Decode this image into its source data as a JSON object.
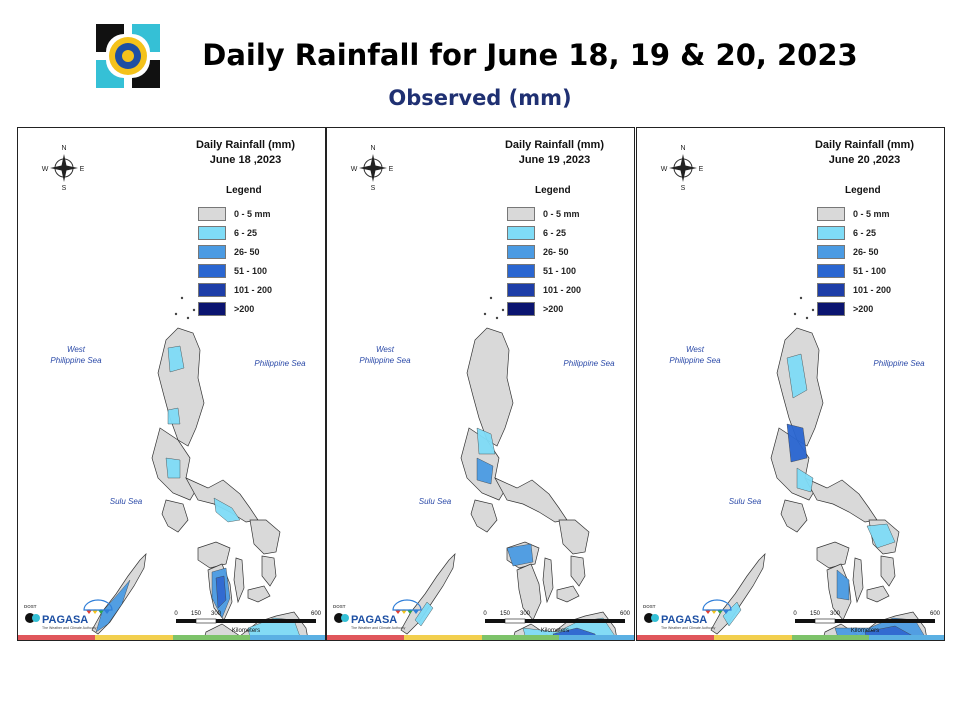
{
  "header": {
    "title": "Daily Rainfall for June 18, 19 & 20, 2023",
    "subtitle": "Observed (mm)"
  },
  "panels": [
    {
      "title_line1": "Daily Rainfall (mm)",
      "title_line2": "June 18 ,2023",
      "dominant": "south-west"
    },
    {
      "title_line1": "Daily Rainfall (mm)",
      "title_line2": "June 19 ,2023",
      "dominant": "mindanao"
    },
    {
      "title_line1": "Daily Rainfall (mm)",
      "title_line2": "June 20 ,2023",
      "dominant": "mindanao-heavy"
    }
  ],
  "legend": {
    "title": "Legend",
    "items": [
      {
        "label": "0 - 5 mm",
        "color": "#d9d9d9"
      },
      {
        "label": "6 - 25",
        "color": "#7fdcf7"
      },
      {
        "label": "26- 50",
        "color": "#4b9be3"
      },
      {
        "label": "51 - 100",
        "color": "#2a66d1"
      },
      {
        "label": "101 - 200",
        "color": "#1d3ea8"
      },
      {
        "label": ">200",
        "color": "#0b1470"
      }
    ]
  },
  "seas": {
    "west": "West\nPhilippine Sea",
    "east": "Philippine Sea",
    "sulu": "Sulu Sea"
  },
  "compass": {
    "n": "N",
    "s": "S",
    "e": "E",
    "w": "W"
  },
  "scale": {
    "ticks": [
      "0",
      "150",
      "300",
      "600"
    ],
    "unit": "Kilometers"
  },
  "branding": {
    "name": "PAGASA",
    "tagline": "The Weather and Climate Authority",
    "pre": "DOST"
  },
  "colors": {
    "stripe": [
      "#e0565b",
      "#f2cf4e",
      "#7dc36a",
      "#5bb0e3"
    ]
  }
}
